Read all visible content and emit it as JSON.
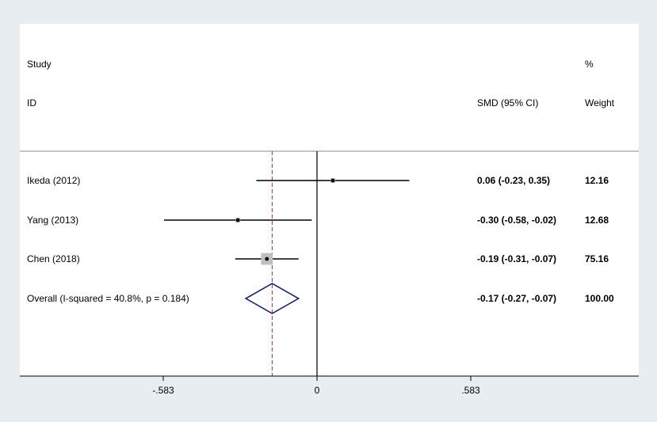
{
  "chart_data": {
    "type": "forest",
    "headers": {
      "study_line1": "Study",
      "study_line2": "ID",
      "effect": "SMD (95% CI)",
      "weight_line1": "%",
      "weight_line2": "Weight"
    },
    "studies": [
      {
        "label": "Ikeda (2012)",
        "smd": 0.06,
        "ci": [
          -0.23,
          0.35
        ],
        "ci_text": "0.06 (-0.23, 0.35)",
        "weight": "12.16"
      },
      {
        "label": "Yang (2013)",
        "smd": -0.3,
        "ci": [
          -0.58,
          -0.02
        ],
        "ci_text": "-0.30 (-0.58, -0.02)",
        "weight": "12.68"
      },
      {
        "label": "Chen (2018)",
        "smd": -0.19,
        "ci": [
          -0.31,
          -0.07
        ],
        "ci_text": "-0.19 (-0.31, -0.07)",
        "weight": "75.16"
      }
    ],
    "overall": {
      "label": "Overall  (I-squared = 40.8%, p = 0.184)",
      "smd": -0.17,
      "ci": [
        -0.27,
        -0.07
      ],
      "ci_text": "-0.17 (-0.27, -0.07)",
      "weight": "100.00"
    },
    "x_ticks": [
      {
        "value": -0.583,
        "label": "-.583"
      },
      {
        "value": 0,
        "label": "0"
      },
      {
        "value": 0.583,
        "label": ".583"
      }
    ],
    "null_line": 0,
    "reference_line": -0.17,
    "colors": {
      "background": "#e8edf1",
      "panel": "#ffffff",
      "marker_box": "#bfbfbf",
      "overall_diamond": "#1f2a6b",
      "reference_line": "#b03030"
    }
  }
}
